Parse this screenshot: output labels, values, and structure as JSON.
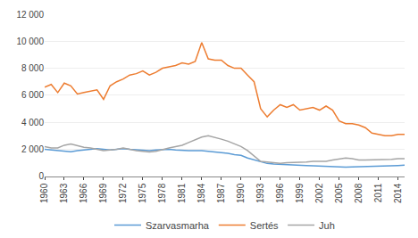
{
  "chart_data": {
    "type": "line",
    "x": [
      1960,
      1961,
      1962,
      1963,
      1964,
      1965,
      1966,
      1967,
      1968,
      1969,
      1970,
      1971,
      1972,
      1973,
      1974,
      1975,
      1976,
      1977,
      1978,
      1979,
      1980,
      1981,
      1982,
      1983,
      1984,
      1985,
      1986,
      1987,
      1988,
      1989,
      1990,
      1991,
      1992,
      1993,
      1994,
      1995,
      1996,
      1997,
      1998,
      1999,
      2000,
      2001,
      2002,
      2003,
      2004,
      2005,
      2006,
      2007,
      2008,
      2009,
      2010,
      2011,
      2012,
      2013,
      2014,
      2015
    ],
    "series": [
      {
        "name": "Szarvasmarha",
        "color": "#5B9BD5",
        "values": [
          2000,
          1950,
          1900,
          1850,
          1820,
          1900,
          1950,
          2000,
          2050,
          2000,
          1950,
          2000,
          2050,
          2000,
          1980,
          1950,
          1900,
          1950,
          1980,
          2000,
          1950,
          1900,
          1900,
          1900,
          1900,
          1850,
          1800,
          1750,
          1700,
          1600,
          1550,
          1350,
          1200,
          1050,
          950,
          900,
          870,
          850,
          850,
          820,
          800,
          780,
          750,
          720,
          700,
          700,
          680,
          690,
          700,
          720,
          730,
          740,
          760,
          780,
          800,
          820
        ]
      },
      {
        "name": "Sertés",
        "color": "#ED7D31",
        "values": [
          6600,
          6800,
          6200,
          6900,
          6700,
          6100,
          6200,
          6300,
          6400,
          5700,
          6700,
          7000,
          7200,
          7500,
          7600,
          7800,
          7500,
          7700,
          8000,
          8100,
          8200,
          8400,
          8300,
          8500,
          9900,
          8700,
          8600,
          8600,
          8200,
          8000,
          8000,
          7500,
          7000,
          5000,
          4400,
          4900,
          5300,
          5100,
          5300,
          4900,
          5000,
          5100,
          4900,
          5200,
          4900,
          4100,
          3900,
          3900,
          3800,
          3600,
          3200,
          3100,
          3000,
          3000,
          3100,
          3100
        ]
      },
      {
        "name": "Juh",
        "color": "#A5A5A5",
        "values": [
          2200,
          2100,
          2100,
          2300,
          2400,
          2250,
          2150,
          2100,
          2000,
          1900,
          1950,
          2000,
          2100,
          2000,
          1900,
          1850,
          1800,
          1850,
          2000,
          2100,
          2200,
          2300,
          2500,
          2700,
          2900,
          3000,
          2900,
          2750,
          2600,
          2400,
          2200,
          1900,
          1500,
          1100,
          1050,
          1000,
          950,
          1000,
          1000,
          1050,
          1050,
          1100,
          1100,
          1100,
          1200,
          1300,
          1350,
          1300,
          1200,
          1200,
          1200,
          1200,
          1200,
          1250,
          1300,
          1300
        ]
      }
    ],
    "xlim": [
      1960,
      2015
    ],
    "xticks": [
      1960,
      1963,
      1966,
      1969,
      1972,
      1975,
      1978,
      1981,
      1984,
      1987,
      1990,
      1993,
      1996,
      1999,
      2002,
      2005,
      2008,
      2011,
      2014
    ],
    "ylim": [
      0,
      12000
    ],
    "yticks": [
      0,
      {
        "value": 2000,
        "label": "2 000"
      },
      {
        "value": 4000,
        "label": "4 000"
      },
      {
        "value": 6000,
        "label": "6 000"
      },
      {
        "value": 8000,
        "label": "8 000"
      },
      {
        "value": 10000,
        "label": "10 000"
      },
      {
        "value": 12000,
        "label": "12 000"
      }
    ],
    "grid": "y",
    "legend": "bottom"
  }
}
